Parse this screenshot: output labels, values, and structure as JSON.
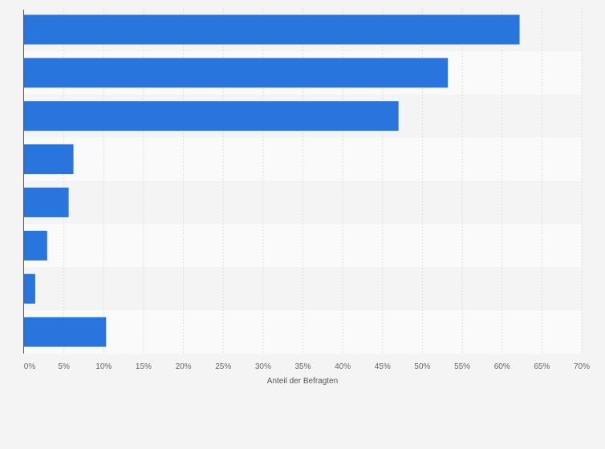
{
  "chart_data": {
    "type": "bar",
    "orientation": "horizontal",
    "categories": [
      "",
      "",
      "",
      "",
      "",
      "",
      "",
      ""
    ],
    "values": [
      62.2,
      53.2,
      47.0,
      6.2,
      5.6,
      2.9,
      1.4,
      10.3
    ],
    "xlabel": "Anteil der Befragten",
    "xlim": [
      0,
      70
    ],
    "ticks": [
      "0%",
      "5%",
      "10%",
      "15%",
      "20%",
      "25%",
      "30%",
      "35%",
      "40%",
      "45%",
      "50%",
      "55%",
      "60%",
      "65%",
      "70%"
    ],
    "grid": true,
    "bar_color": "#2876dd",
    "band_colors": [
      "#f4f4f4",
      "#fafafa"
    ],
    "gridline_color": "#dcdcdc"
  }
}
